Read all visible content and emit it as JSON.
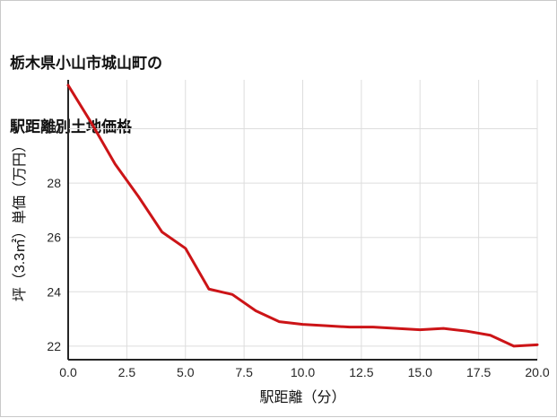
{
  "title": {
    "line1": "栃木県小山市城山町の",
    "line2": "駅距離別土地価格"
  },
  "chart_data": {
    "type": "line",
    "title": "栃木県小山市城山町の駅距離別土地価格",
    "xlabel": "駅距離（分）",
    "ylabel": "坪（3.3㎡）単価（万円）",
    "x": [
      0,
      1,
      2,
      3,
      4,
      5,
      6,
      7,
      8,
      9,
      10,
      11,
      12,
      13,
      14,
      15,
      16,
      17,
      18,
      19,
      20
    ],
    "y": [
      31.6,
      30.2,
      28.7,
      27.5,
      26.2,
      25.6,
      24.1,
      23.9,
      23.3,
      22.9,
      22.8,
      22.75,
      22.7,
      22.7,
      22.65,
      22.6,
      22.65,
      22.55,
      22.4,
      22.0,
      22.05
    ],
    "xlim": [
      0,
      20
    ],
    "ylim": [
      21.5,
      31.8
    ],
    "x_ticks": [
      0,
      2.5,
      5,
      7.5,
      10,
      12.5,
      15,
      17.5,
      20
    ],
    "x_tick_labels": [
      "0.0",
      "2.5",
      "5.0",
      "7.5",
      "10.0",
      "12.5",
      "15.0",
      "17.5",
      "20.0"
    ],
    "y_ticks": [
      22,
      24,
      26,
      28,
      30
    ],
    "y_tick_labels": [
      "22",
      "24",
      "26",
      "28",
      "30"
    ],
    "grid": true,
    "legend_position": "none",
    "line_color": "#cc1417",
    "grid_color": "#dddddd",
    "axis_color": "#262626",
    "background_color": "#ffffff"
  }
}
